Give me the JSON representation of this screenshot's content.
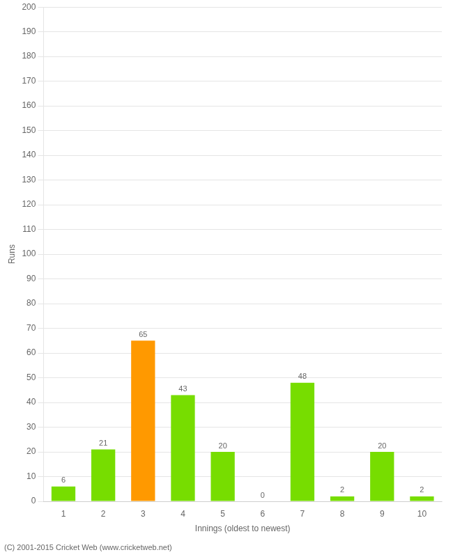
{
  "chart_data": {
    "type": "bar",
    "categories": [
      "1",
      "2",
      "3",
      "4",
      "5",
      "6",
      "7",
      "8",
      "9",
      "10"
    ],
    "values": [
      6,
      21,
      65,
      43,
      20,
      0,
      48,
      2,
      20,
      2
    ],
    "colors": [
      "#77dd00",
      "#77dd00",
      "#ff9900",
      "#77dd00",
      "#77dd00",
      "#77dd00",
      "#77dd00",
      "#77dd00",
      "#77dd00",
      "#77dd00"
    ],
    "xlabel": "Innings (oldest to newest)",
    "ylabel": "Runs",
    "ylim": [
      0,
      200
    ],
    "yticks": [
      0,
      10,
      20,
      30,
      40,
      50,
      60,
      70,
      80,
      90,
      100,
      110,
      120,
      130,
      140,
      150,
      160,
      170,
      180,
      190,
      200
    ],
    "grid": true,
    "data_labels": true,
    "annotations": [
      "(C) 2001-2015 Cricket Web (www.cricketweb.net)"
    ]
  }
}
